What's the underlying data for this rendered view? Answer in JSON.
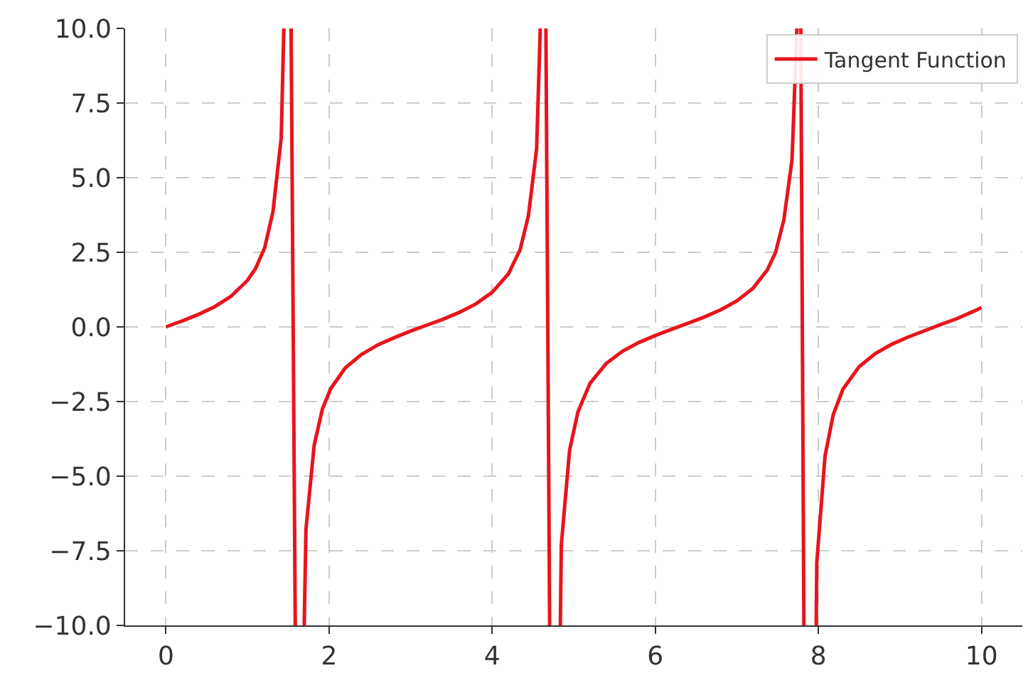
{
  "chart_data": {
    "type": "line",
    "legend": "top right",
    "grid": true,
    "marker": "none",
    "line_style": "solid",
    "xlim": [
      -0.5,
      10.5
    ],
    "xticks": [
      0,
      2,
      4,
      6,
      8,
      10
    ],
    "ylim": [
      -10,
      10
    ],
    "yticks": [
      {
        "value": -10,
        "label": "−10.0"
      },
      {
        "value": -7.5,
        "label": "−7.5"
      },
      {
        "value": -5,
        "label": "−5.0"
      },
      {
        "value": -2.5,
        "label": "−2.5"
      },
      {
        "value": 0,
        "label": "0.0"
      },
      {
        "value": 2.5,
        "label": "2.5"
      },
      {
        "value": 5,
        "label": "5.0"
      },
      {
        "value": 7.5,
        "label": "7.5"
      },
      {
        "value": 10,
        "label": "10.0"
      }
    ],
    "series": [
      {
        "name": "Tangent Function",
        "color": "#e8141c",
        "x": [
          0,
          0.2,
          0.4,
          0.6,
          0.8,
          1.0,
          1.1,
          1.212,
          1.313,
          1.414,
          1.446,
          null,
          1.535,
          1.586,
          null,
          1.696,
          1.717,
          1.818,
          1.919,
          2.02,
          2.2,
          2.4,
          2.6,
          2.8,
          3.0,
          3.2,
          3.4,
          3.6,
          3.8,
          4.0,
          4.2,
          4.343,
          4.444,
          4.545,
          4.59,
          null,
          4.659,
          4.705,
          null,
          4.836,
          4.848,
          4.949,
          5.051,
          5.2,
          5.4,
          5.6,
          5.8,
          6.0,
          6.2,
          6.4,
          6.6,
          6.8,
          7.0,
          7.2,
          7.374,
          7.475,
          7.576,
          7.677,
          7.736,
          null,
          7.784,
          7.822,
          null,
          7.973,
          7.98,
          8.081,
          8.182,
          8.3,
          8.5,
          8.7,
          8.9,
          9.1,
          9.3,
          9.5,
          9.7,
          9.9,
          10
        ],
        "values": [
          0,
          0.2,
          0.42,
          0.68,
          1.03,
          1.56,
          1.96,
          2.66,
          3.87,
          6.33,
          10,
          null,
          10,
          -10,
          null,
          -10,
          -6.78,
          -3.96,
          -2.75,
          -2.07,
          -1.37,
          -0.92,
          -0.6,
          -0.36,
          -0.14,
          0.06,
          0.26,
          0.49,
          0.77,
          1.16,
          1.78,
          2.59,
          3.72,
          5.96,
          10,
          null,
          10,
          -10,
          null,
          -10,
          -7.3,
          -4.14,
          -2.85,
          -1.89,
          -1.22,
          -0.81,
          -0.52,
          -0.29,
          -0.08,
          0.12,
          0.33,
          0.57,
          0.87,
          1.3,
          1.91,
          2.5,
          3.58,
          5.6,
          10,
          null,
          10,
          -10,
          null,
          -10,
          -7.91,
          -4.33,
          -2.94,
          -2.09,
          -1.33,
          -0.89,
          -0.58,
          -0.34,
          -0.13,
          0.08,
          0.28,
          0.52,
          0.65
        ]
      }
    ]
  }
}
